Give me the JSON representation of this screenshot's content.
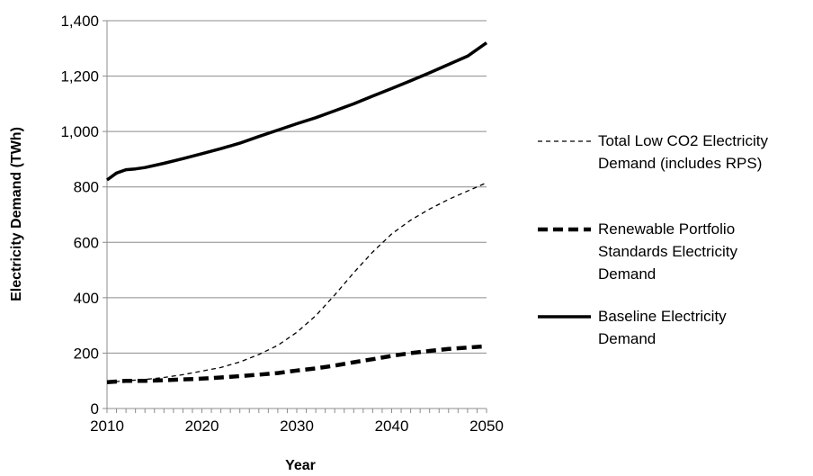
{
  "chart_data": {
    "type": "line",
    "title": "",
    "xlabel": "Year",
    "ylabel": "Electricity Demand (TWh)",
    "xlim": [
      2010,
      2050
    ],
    "ylim": [
      0,
      1400
    ],
    "x_ticks": [
      2010,
      2020,
      2030,
      2040,
      2050
    ],
    "y_ticks": [
      0,
      200,
      400,
      600,
      800,
      1000,
      1200,
      1400
    ],
    "y_tick_labels": [
      "0",
      "200",
      "400",
      "600",
      "800",
      "1,000",
      "1,200",
      "1,400"
    ],
    "grid": "horizontal",
    "legend": "right",
    "series": [
      {
        "name": "Total Low CO2 Electricity Demand (includes RPS)",
        "legend_lines": [
          "Total Low CO2 Electricity",
          "Demand (includes RPS)"
        ],
        "style": "thin-dashed",
        "color": "#000000",
        "x": [
          2010,
          2012,
          2014,
          2016,
          2018,
          2020,
          2022,
          2024,
          2026,
          2028,
          2030,
          2032,
          2034,
          2036,
          2038,
          2040,
          2042,
          2044,
          2046,
          2048,
          2050
        ],
        "y": [
          95,
          100,
          105,
          112,
          122,
          135,
          148,
          168,
          195,
          228,
          275,
          335,
          410,
          490,
          565,
          630,
          680,
          720,
          755,
          785,
          815
        ]
      },
      {
        "name": "Renewable Portfolio Standards Electricity Demand",
        "legend_lines": [
          "Renewable Portfolio",
          "Standards Electricity",
          "Demand"
        ],
        "style": "thick-dashed",
        "color": "#000000",
        "x": [
          2010,
          2012,
          2014,
          2016,
          2018,
          2020,
          2022,
          2024,
          2026,
          2028,
          2030,
          2032,
          2034,
          2036,
          2038,
          2040,
          2042,
          2044,
          2046,
          2048,
          2050
        ],
        "y": [
          95,
          100,
          100,
          102,
          105,
          108,
          112,
          117,
          122,
          128,
          137,
          145,
          155,
          167,
          178,
          190,
          200,
          208,
          215,
          220,
          225
        ]
      },
      {
        "name": "Baseline Electricity Demand",
        "legend_lines": [
          "Baseline Electricity",
          "Demand"
        ],
        "style": "solid",
        "color": "#000000",
        "x": [
          2010,
          2011,
          2012,
          2013,
          2014,
          2016,
          2018,
          2020,
          2022,
          2024,
          2026,
          2028,
          2030,
          2032,
          2034,
          2036,
          2038,
          2040,
          2042,
          2044,
          2046,
          2048,
          2050
        ],
        "y": [
          825,
          850,
          862,
          865,
          870,
          885,
          902,
          920,
          938,
          958,
          982,
          1005,
          1028,
          1050,
          1075,
          1100,
          1128,
          1155,
          1183,
          1212,
          1242,
          1272,
          1320
        ]
      }
    ]
  }
}
